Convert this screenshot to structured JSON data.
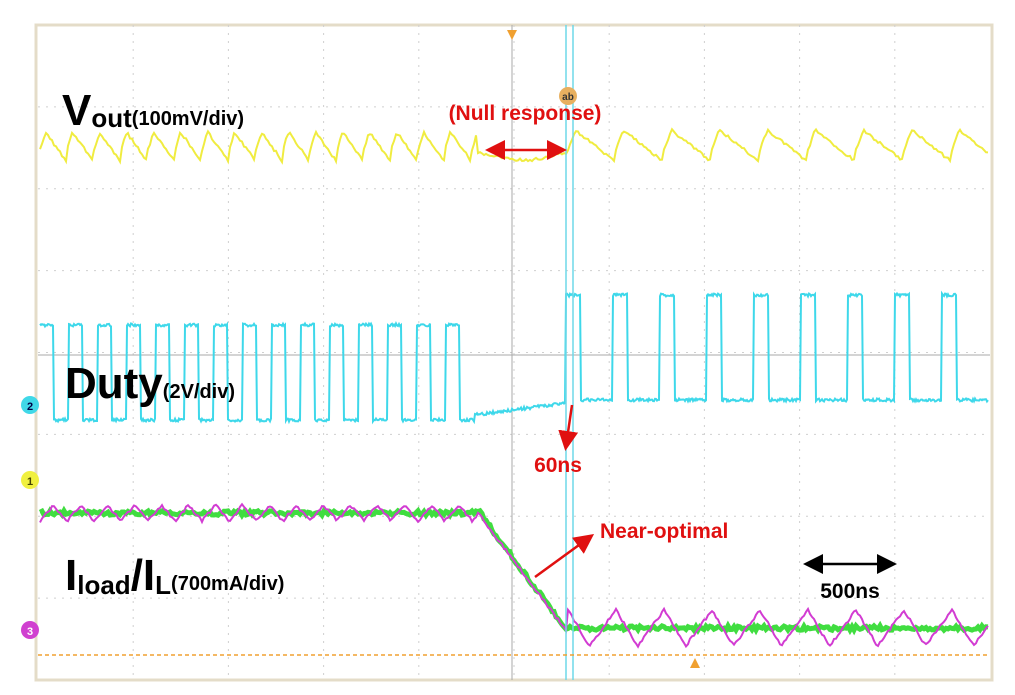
{
  "traces": [
    {
      "label": "V",
      "subscript": "out",
      "scale": "(100mV/div)"
    },
    {
      "label": "Duty",
      "scale": "(2V/div)"
    },
    {
      "label": "I",
      "subscript": "load",
      "label2": "/I",
      "subscript2": "L",
      "scale": "(700mA/div)"
    }
  ],
  "annotations": {
    "null_response": "(Null response)",
    "delay": "60ns",
    "near_optimal": "Near-optimal",
    "time_span": "500ns"
  },
  "channel_markers": [
    "2",
    "1",
    "3"
  ],
  "cursor_label": "ab"
}
